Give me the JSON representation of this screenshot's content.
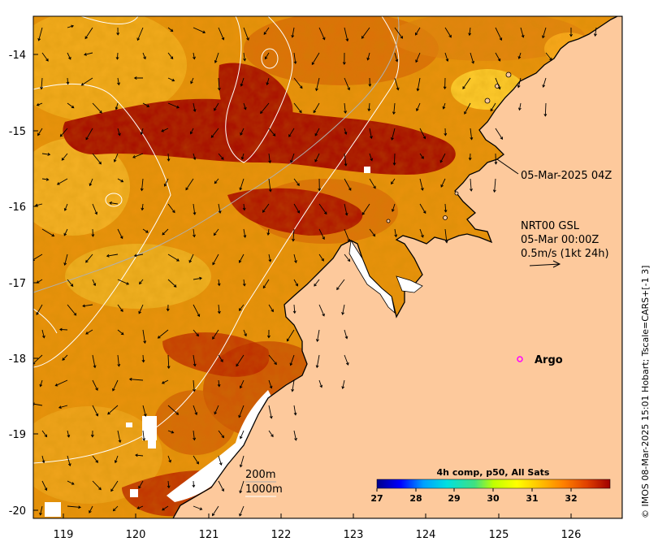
{
  "map": {
    "y_ticks": [
      "-14",
      "-15",
      "-16",
      "-17",
      "-18",
      "-19",
      "-20"
    ],
    "x_ticks": [
      "119",
      "120",
      "121",
      "122",
      "123",
      "124",
      "125",
      "126"
    ],
    "composite_time": "05-Mar-2025 04Z",
    "current_source": "NRT00 GSL",
    "current_time": "05-Mar 00:00Z",
    "current_scale": "0.5m/s (1kt 24h)",
    "argo_label": "Argo",
    "argo_marker_color": "#ff00ff",
    "contour_200": "200m",
    "contour_1000": "1000m",
    "land_color": "#fdc99c",
    "credit": "© IMOS 08-Mar-2025 15:01 Hobart; Tscale=CARS+[-1 3]"
  },
  "colorbar": {
    "title": "4h comp, p50, All Sats",
    "ticks": [
      "27",
      "28",
      "29",
      "30",
      "31",
      "32"
    ],
    "colors": [
      "#00008b",
      "#0000ff",
      "#00a0ff",
      "#00e0e0",
      "#40e080",
      "#c0ff00",
      "#ffff00",
      "#ffc000",
      "#ff8000",
      "#e04000",
      "#a00000"
    ]
  }
}
